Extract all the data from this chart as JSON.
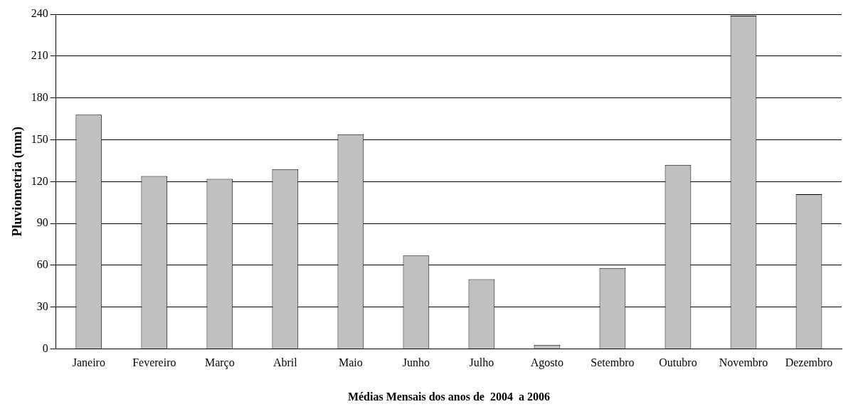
{
  "chart_data": {
    "type": "bar",
    "xlabel": "Médias Mensais dos anos de  2004  a 2006",
    "ylabel": "Pluviometria (mm)",
    "categories": [
      "Janeiro",
      "Fevereiro",
      "Março",
      "Abril",
      "Maio",
      "Junho",
      "Julho",
      "Agosto",
      "Setembro",
      "Outubro",
      "Novembro",
      "Dezembro"
    ],
    "values": [
      168,
      124,
      122,
      129,
      154,
      67,
      50,
      3,
      58,
      132,
      239,
      111
    ],
    "color": "#c0c0c0",
    "ylim": [
      0,
      240
    ],
    "yticks": [
      0,
      30,
      60,
      90,
      120,
      150,
      180,
      210,
      240
    ],
    "grid": "y",
    "legend": false
  }
}
